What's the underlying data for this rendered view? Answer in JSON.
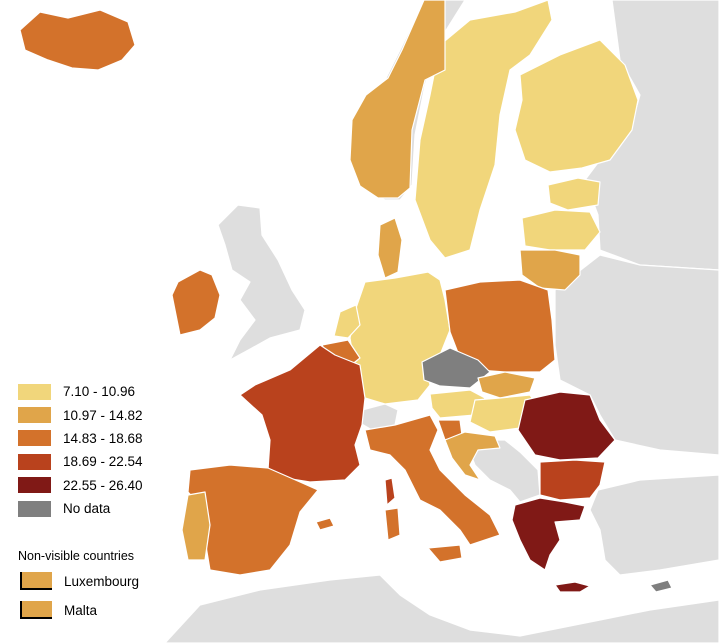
{
  "colors": {
    "sea": "#ffffff",
    "non_eu": "#dedede",
    "border": "#ffffff",
    "class_1": "#f1d67b",
    "class_2": "#e0a54a",
    "class_3": "#d3722b",
    "class_4": "#b9421d",
    "class_5": "#801916",
    "no_data": "#7f7f7f"
  },
  "legend": {
    "classes": [
      {
        "label": "7.10 - 10.96",
        "color": "#f1d67b"
      },
      {
        "label": "10.97 - 14.82",
        "color": "#e0a54a"
      },
      {
        "label": "14.83 - 18.68",
        "color": "#d3722b"
      },
      {
        "label": "18.69 - 22.54",
        "color": "#b9421d"
      },
      {
        "label": "22.55 - 26.40",
        "color": "#801916"
      },
      {
        "label": "No data",
        "color": "#7f7f7f"
      }
    ],
    "non_visible_title": "Non-visible countries",
    "non_visible": [
      {
        "label": "Luxembourg",
        "color": "#e0a54a"
      },
      {
        "label": "Malta",
        "color": "#e0a54a"
      }
    ]
  }
}
